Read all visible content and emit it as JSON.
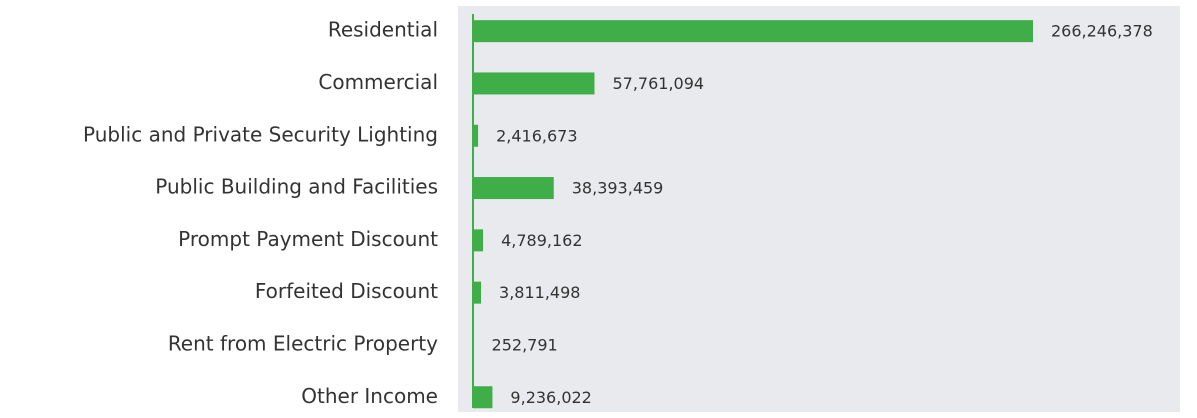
{
  "chart_data": {
    "type": "hbar",
    "categories": [
      "Residential",
      "Commercial",
      "Public and Private Security Lighting",
      "Public Building and Facilities",
      "Prompt Payment Discount",
      "Forfeited Discount",
      "Rent from Electric Property",
      "Other Income"
    ],
    "values": [
      266246378,
      57761094,
      2416673,
      38393459,
      4789162,
      3811498,
      252791,
      9236022
    ],
    "value_labels": [
      "266,246,378",
      "57,761,094",
      "2,416,673",
      "38,393,459",
      "4,789,162",
      "3,811,498",
      "252,791",
      "9,236,022"
    ],
    "color": "#3fae49",
    "xlim": [
      0,
      300000000
    ]
  }
}
